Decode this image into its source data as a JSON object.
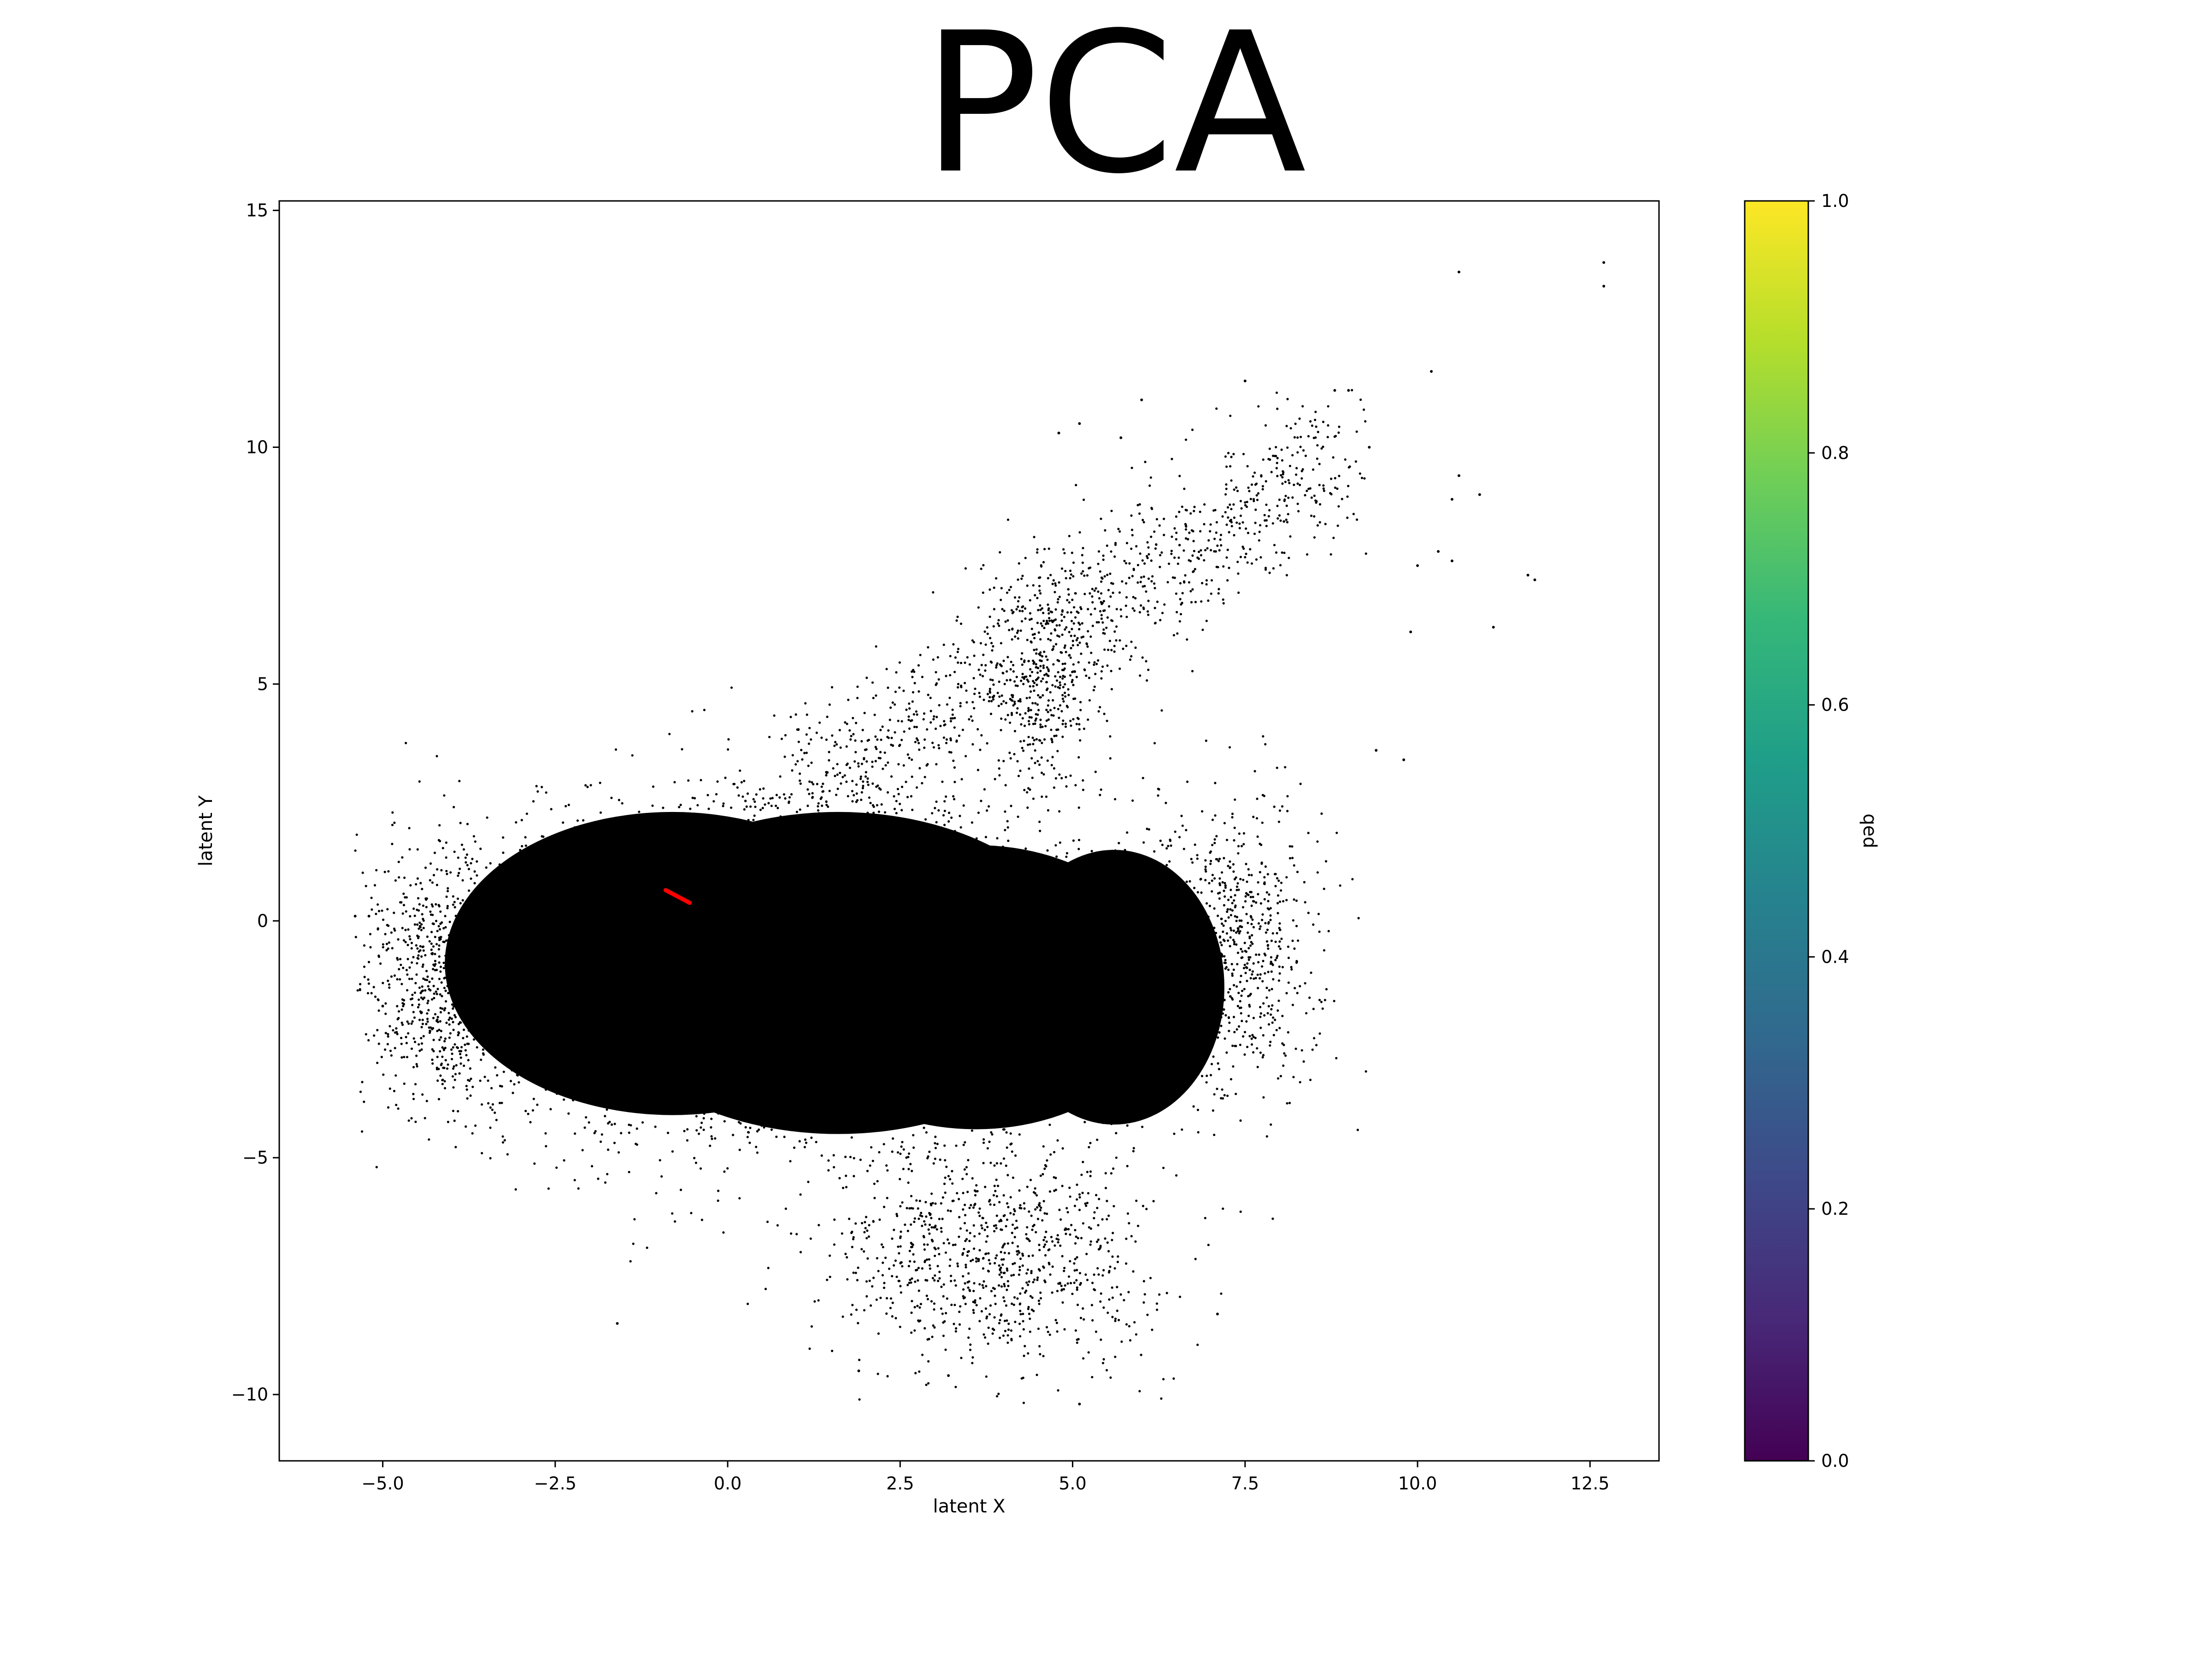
{
  "chart_data": {
    "type": "scatter",
    "title": "PCA",
    "xlabel": "latent X",
    "ylabel": "latent Y",
    "xlim": [
      -6.5,
      13.5
    ],
    "ylim": [
      -11.4,
      15.2
    ],
    "xticks": [
      -5.0,
      -2.5,
      0.0,
      2.5,
      5.0,
      7.5,
      10.0,
      12.5
    ],
    "xtick_labels": [
      "−5.0",
      "−2.5",
      "0.0",
      "2.5",
      "5.0",
      "7.5",
      "10.0",
      "12.5"
    ],
    "yticks": [
      15,
      10,
      5,
      0,
      -5,
      -10
    ],
    "ytick_labels": [
      "15",
      "10",
      "5",
      "0",
      "−5",
      "−10"
    ],
    "grid": false,
    "point_color": "#000000",
    "dense_cluster": {
      "center": [
        0.7,
        -1.2
      ],
      "extent_x": [
        -5.4,
        9.3
      ],
      "extent_y": [
        -10.2,
        11.4
      ]
    },
    "outliers": [
      [
        12.7,
        13.9
      ],
      [
        12.7,
        13.4
      ],
      [
        10.6,
        13.7
      ],
      [
        10.2,
        11.6
      ],
      [
        7.5,
        11.4
      ],
      [
        8.8,
        11.2
      ],
      [
        9.0,
        11.2
      ],
      [
        6.0,
        11.0
      ],
      [
        4.8,
        10.3
      ],
      [
        5.1,
        10.5
      ],
      [
        5.7,
        10.2
      ],
      [
        9.3,
        10.0
      ],
      [
        10.6,
        9.4
      ],
      [
        10.9,
        9.0
      ],
      [
        10.5,
        8.9
      ],
      [
        11.1,
        6.2
      ],
      [
        11.6,
        7.3
      ],
      [
        11.7,
        7.2
      ],
      [
        10.0,
        7.5
      ],
      [
        10.3,
        7.8
      ],
      [
        10.5,
        7.6
      ],
      [
        9.9,
        6.1
      ],
      [
        9.4,
        3.6
      ],
      [
        9.8,
        3.4
      ],
      [
        -5.4,
        0.1
      ],
      [
        -5.2,
        0.1
      ],
      [
        -5.0,
        -1.8
      ],
      [
        -1.6,
        -8.5
      ],
      [
        7.1,
        -8.3
      ],
      [
        5.1,
        -10.2
      ],
      [
        1.9,
        -9.5
      ],
      [
        3.2,
        -9.6
      ]
    ],
    "highlight_segment": {
      "color": "#ff0000",
      "points": [
        [
          -0.9,
          0.65
        ],
        [
          -0.55,
          0.38
        ]
      ]
    },
    "colorbar": {
      "label": "qed",
      "range": [
        0.0,
        1.0
      ],
      "ticks": [
        0.0,
        0.2,
        0.4,
        0.6,
        0.8,
        1.0
      ],
      "tick_labels": [
        "0.0",
        "0.2",
        "0.4",
        "0.6",
        "0.8",
        "1.0"
      ],
      "colormap": "viridis",
      "colors": [
        "#440154",
        "#482878",
        "#3e4989",
        "#31688e",
        "#26828e",
        "#1f9e89",
        "#35b779",
        "#6ece58",
        "#b5de2b",
        "#fde725"
      ]
    }
  }
}
